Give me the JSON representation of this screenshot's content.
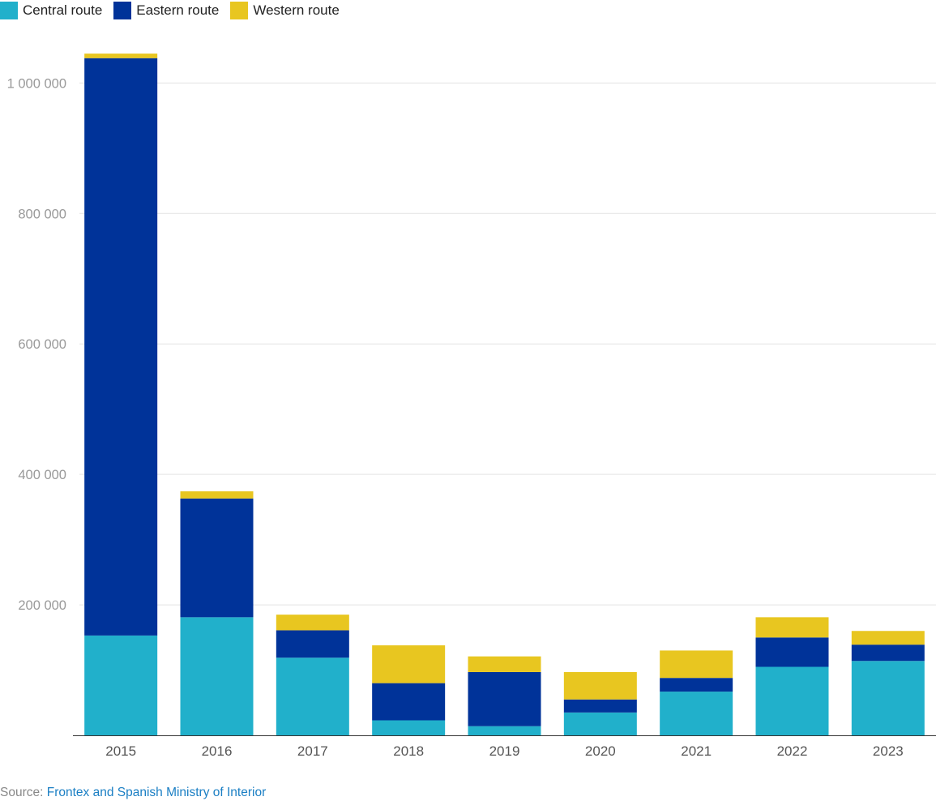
{
  "legend": [
    {
      "label": "Central route",
      "color": "#21b0cb"
    },
    {
      "label": "Eastern route",
      "color": "#003399"
    },
    {
      "label": "Western route",
      "color": "#e8c620"
    }
  ],
  "source": {
    "prefix": "Source:",
    "link_text": "Frontex and Spanish Ministry of Interior"
  },
  "chart_data": {
    "type": "bar",
    "stacked": true,
    "categories": [
      "2015",
      "2016",
      "2017",
      "2018",
      "2019",
      "2020",
      "2021",
      "2022",
      "2023"
    ],
    "series": [
      {
        "name": "Central route",
        "color": "#21b0cb",
        "values": [
          153000,
          181000,
          119000,
          23000,
          14000,
          35000,
          67000,
          105000,
          114000
        ]
      },
      {
        "name": "Eastern route",
        "color": "#003399",
        "values": [
          885000,
          182000,
          42000,
          57000,
          83000,
          20000,
          21000,
          45000,
          25000
        ]
      },
      {
        "name": "Western route",
        "color": "#e8c620",
        "values": [
          7000,
          11000,
          24000,
          58000,
          24000,
          42000,
          42000,
          31000,
          21000
        ]
      }
    ],
    "y_ticks": [
      {
        "value": 200000,
        "label": "200 000"
      },
      {
        "value": 400000,
        "label": "400 000"
      },
      {
        "value": 600000,
        "label": "600 000"
      },
      {
        "value": 800000,
        "label": "800 000"
      },
      {
        "value": 1000000,
        "label": "1 000 000"
      }
    ],
    "ylim": [
      0,
      1070000
    ],
    "title": "",
    "xlabel": "",
    "ylabel": "",
    "grid": true,
    "legend_position": "top-left"
  }
}
